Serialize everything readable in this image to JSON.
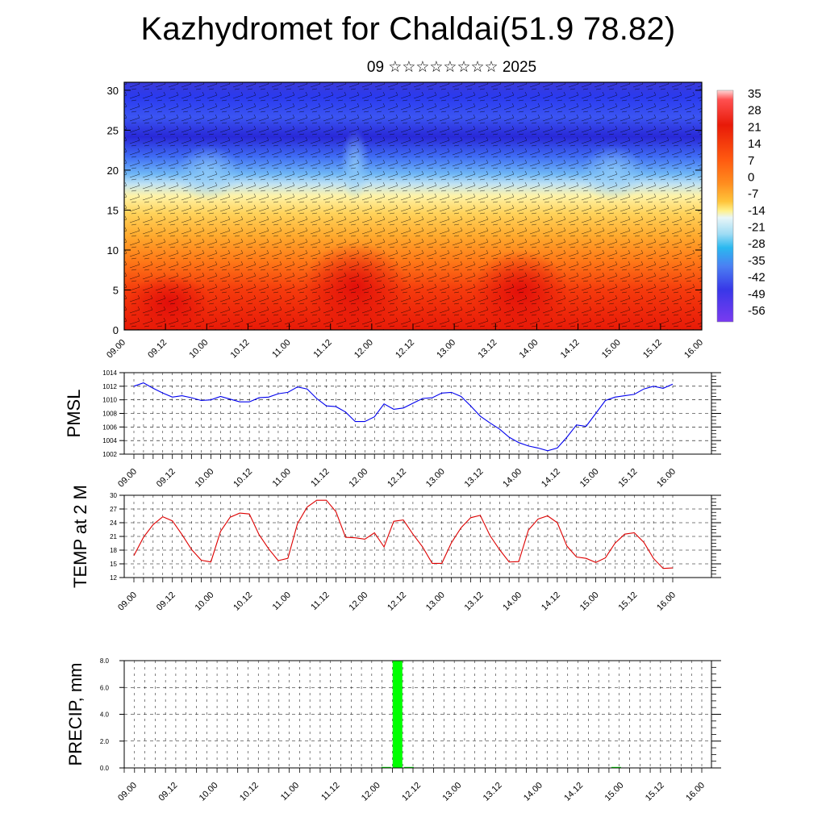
{
  "title": "Kazhydromet for Chaldai(51.9 78.82)",
  "subtitle": "09 ☆☆☆☆☆☆☆☆ 2025",
  "time_ticks": [
    "09.00",
    "09.12",
    "10.00",
    "10.12",
    "11.00",
    "11.12",
    "12.00",
    "12.12",
    "13.00",
    "13.12",
    "14.00",
    "14.12",
    "15.00",
    "15.12",
    "16.00"
  ],
  "chart_data": [
    {
      "type": "heatmap",
      "name": "vertical-cross-section",
      "x": [
        "09.00",
        "09.12",
        "10.00",
        "10.12",
        "11.00",
        "11.12",
        "12.00",
        "12.12",
        "13.00",
        "13.12",
        "14.00",
        "14.12",
        "15.00",
        "15.12",
        "16.00"
      ],
      "ylim": [
        0,
        31
      ],
      "yticks": [
        0,
        5,
        10,
        15,
        20,
        25,
        30
      ],
      "colorbar": {
        "labels": [
          "35",
          "28",
          "21",
          "14",
          "7",
          "0",
          "-7",
          "-14",
          "-21",
          "-28",
          "-35",
          "-42",
          "-49",
          "-56"
        ]
      }
    },
    {
      "type": "line",
      "ylabel": "PMSL",
      "ylim": [
        1002,
        1014
      ],
      "yticks": [
        1002,
        1004,
        1006,
        1008,
        1010,
        1012,
        1014
      ],
      "color": "#0000ee",
      "values": [
        1012.0,
        1012.5,
        1011.7,
        1011.0,
        1010.4,
        1010.6,
        1010.3,
        1009.9,
        1010.0,
        1010.5,
        1010.1,
        1009.7,
        1009.7,
        1010.3,
        1010.4,
        1010.9,
        1011.1,
        1011.9,
        1011.6,
        1010.2,
        1009.1,
        1009.0,
        1008.2,
        1006.8,
        1006.8,
        1007.5,
        1009.4,
        1008.6,
        1008.8,
        1009.5,
        1010.2,
        1010.3,
        1011.0,
        1011.1,
        1010.5,
        1009.1,
        1007.6,
        1006.6,
        1005.7,
        1004.5,
        1003.7,
        1003.2,
        1002.9,
        1002.5,
        1002.9,
        1004.5,
        1006.3,
        1006.1,
        1008.0,
        1009.9,
        1010.4,
        1010.6,
        1010.8,
        1011.6,
        1012.0,
        1011.7,
        1012.3
      ]
    },
    {
      "type": "line",
      "ylabel": "TEMP at 2 M",
      "ylim": [
        12,
        30
      ],
      "yticks": [
        12,
        15,
        18,
        21,
        24,
        27,
        30
      ],
      "color": "#dd0000",
      "values": [
        16.8,
        20.8,
        23.6,
        25.3,
        24.4,
        21.4,
        18.1,
        15.8,
        15.4,
        22.1,
        25.2,
        26.1,
        25.9,
        21.4,
        18.3,
        15.7,
        16.2,
        23.8,
        27.4,
        28.9,
        28.9,
        26.4,
        20.8,
        20.7,
        20.4,
        21.8,
        18.7,
        24.3,
        24.6,
        21.5,
        18.7,
        15.1,
        15.1,
        19.6,
        22.9,
        25.1,
        25.6,
        21.2,
        18.1,
        15.4,
        15.5,
        22.4,
        24.8,
        25.5,
        24.0,
        18.9,
        16.5,
        16.2,
        15.3,
        16.3,
        19.5,
        21.5,
        21.8,
        19.7,
        16.2,
        14.0,
        14.1
      ]
    },
    {
      "type": "bar",
      "ylabel": "PRECIP, mm",
      "ylim": [
        0,
        8
      ],
      "yticks": [
        "0.0",
        "2.0",
        "4.0",
        "6.0",
        "8.0"
      ],
      "color": "#00ff00",
      "bars": [
        {
          "x": 26.5,
          "value": 8.0
        },
        {
          "x": 25.4,
          "value": 0.04
        },
        {
          "x": 27.6,
          "value": 0.04
        },
        {
          "x": 47.7,
          "value": 0.04
        }
      ]
    }
  ]
}
